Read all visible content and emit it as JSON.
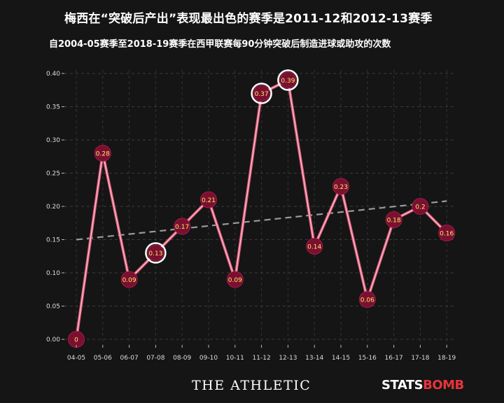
{
  "title": "梅西在“突破后产出”表现最出色的赛季是2011-12和2012-13赛季",
  "subtitle": "自2004-05赛季至2018-19赛季在西甲联赛每90分钟突破后制造进球或助攻的次数",
  "footer": {
    "athletic": "THE ATHLETIC",
    "statsbomb_part1": "STATS",
    "statsbomb_part2": "BOMB"
  },
  "colors": {
    "background": "#151515",
    "line": "#e05a7a",
    "marker_fill": "#7a1030",
    "label": "#ffe566",
    "trend": "#9a9a9a",
    "highlight_ring": "#ffffff"
  },
  "chart_data": {
    "type": "line",
    "title": "梅西在“突破后产出”表现最出色的赛季是2011-12和2012-13赛季",
    "subtitle": "自2004-05赛季至2018-19赛季在西甲联赛每90分钟突破后制造进球或助攻的次数",
    "xlabel": "",
    "ylabel": "",
    "categories": [
      "04-05",
      "05-06",
      "06-07",
      "07-08",
      "08-09",
      "09-10",
      "10-11",
      "11-12",
      "12-13",
      "13-14",
      "14-15",
      "15-16",
      "16-17",
      "17-18",
      "18-19"
    ],
    "values": [
      0,
      0.28,
      0.09,
      0.13,
      0.17,
      0.21,
      0.09,
      0.37,
      0.39,
      0.14,
      0.23,
      0.06,
      0.18,
      0.2,
      0.16
    ],
    "point_labels": [
      "0",
      "0.28",
      "0.09",
      "0.13",
      "0.17",
      "0.21",
      "0.09",
      "0.37",
      "0.39",
      "0.14",
      "0.23",
      "0.06",
      "0.18",
      "0.2",
      "0.16"
    ],
    "highlighted": [
      "07-08",
      "11-12",
      "12-13"
    ],
    "trendline": {
      "start": 0.15,
      "end": 0.208
    },
    "ylim": [
      0,
      0.4
    ],
    "yticks": [
      "0.00",
      "0.05",
      "0.10",
      "0.15",
      "0.20",
      "0.25",
      "0.30",
      "0.35",
      "0.40"
    ],
    "grid": true,
    "legend": "none"
  }
}
